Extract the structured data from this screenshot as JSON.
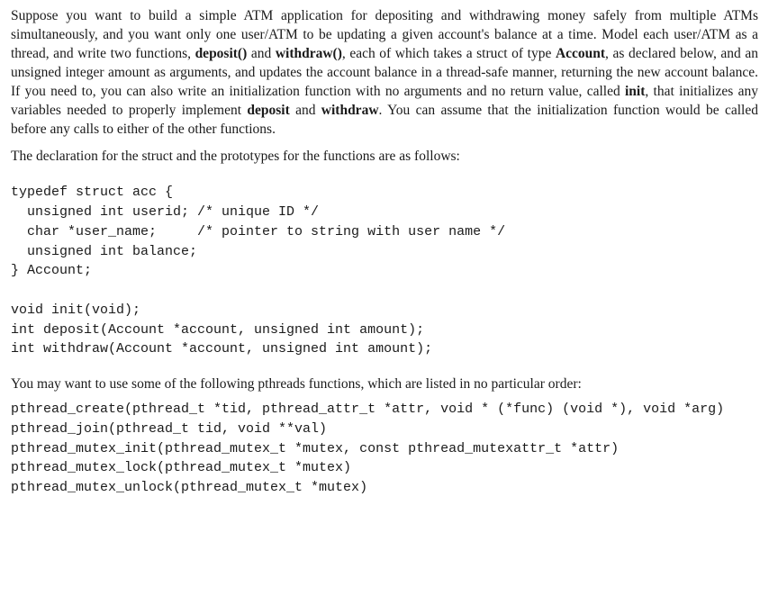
{
  "doc": {
    "para1": "Suppose you want to build a simple ATM application for depositing and withdrawing money safely from multiple ATMs simultaneously, and you want only one user/ATM to be updating a given account's balance at a time. Model each user/ATM as a thread, and write two functions, <b>deposit()</b> and <b>withdraw()</b>, each of which takes a struct of type <b>Account</b>, as declared below, and an unsigned integer amount as arguments, and updates the account balance in a thread-safe manner, returning the new account balance. If you need to, you can also write an initialization function with no arguments and no return value, called <b>init</b>, that initializes any variables needed to properly implement <b>deposit</b> and <b>withdraw</b>. You can assume that the initialization function would be called before any calls to either of the other functions.",
    "para2": "The declaration for the struct and the prototypes for the functions are as follows:",
    "code": "typedef struct acc {\n  unsigned int userid; /* unique ID */\n  char *user_name;     /* pointer to string with user name */\n  unsigned int balance;\n} Account;\n\nvoid init(void);\nint deposit(Account *account, unsigned int amount);\nint withdraw(Account *account, unsigned int amount);",
    "pthreads_intro": "You may want to use some of the following pthreads functions, which are listed in no particular order:",
    "pthreads_list": "pthread_create(pthread_t *tid, pthread_attr_t *attr, void * (*func) (void *), void *arg)\npthread_join(pthread_t tid, void **val)\npthread_mutex_init(pthread_mutex_t *mutex, const pthread_mutexattr_t *attr)\npthread_mutex_lock(pthread_mutex_t *mutex)\npthread_mutex_unlock(pthread_mutex_t *mutex)"
  },
  "styles": {
    "body_bg": "#ffffff",
    "text_color": "#1a1a1a",
    "serif_font": "Georgia, 'Times New Roman', serif",
    "mono_font": "'Courier New', Courier, monospace",
    "para_fontsize": 15.5,
    "code_fontsize": 15,
    "para_lineheight": 1.35,
    "code_lineheight": 1.45
  }
}
